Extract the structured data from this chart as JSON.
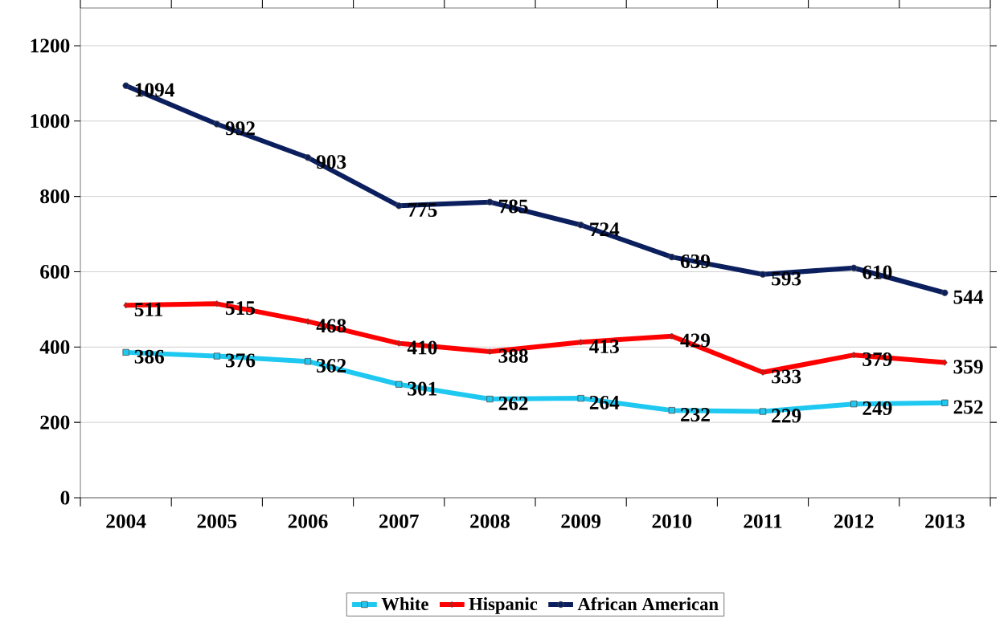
{
  "chart_data": {
    "type": "line",
    "categories": [
      "2004",
      "2005",
      "2006",
      "2007",
      "2008",
      "2009",
      "2010",
      "2011",
      "2012",
      "2013"
    ],
    "series": [
      {
        "name": "White",
        "color": "#1ec8f0",
        "marker": "square",
        "values": [
          386,
          376,
          362,
          301,
          262,
          264,
          232,
          229,
          249,
          252
        ]
      },
      {
        "name": "Hispanic",
        "color": "#ff0000",
        "marker": "diamond",
        "values": [
          511,
          515,
          468,
          410,
          388,
          413,
          429,
          333,
          379,
          359
        ]
      },
      {
        "name": "African American",
        "color": "#0b1f5e",
        "marker": "circle",
        "values": [
          1094,
          992,
          903,
          775,
          785,
          724,
          639,
          593,
          610,
          544
        ]
      }
    ],
    "ylim": [
      0,
      1300
    ],
    "yticks": [
      0,
      200,
      400,
      600,
      800,
      1000,
      1200
    ],
    "grid": "y",
    "legend": "bottom",
    "data_labels": true,
    "line_style": "solid"
  }
}
